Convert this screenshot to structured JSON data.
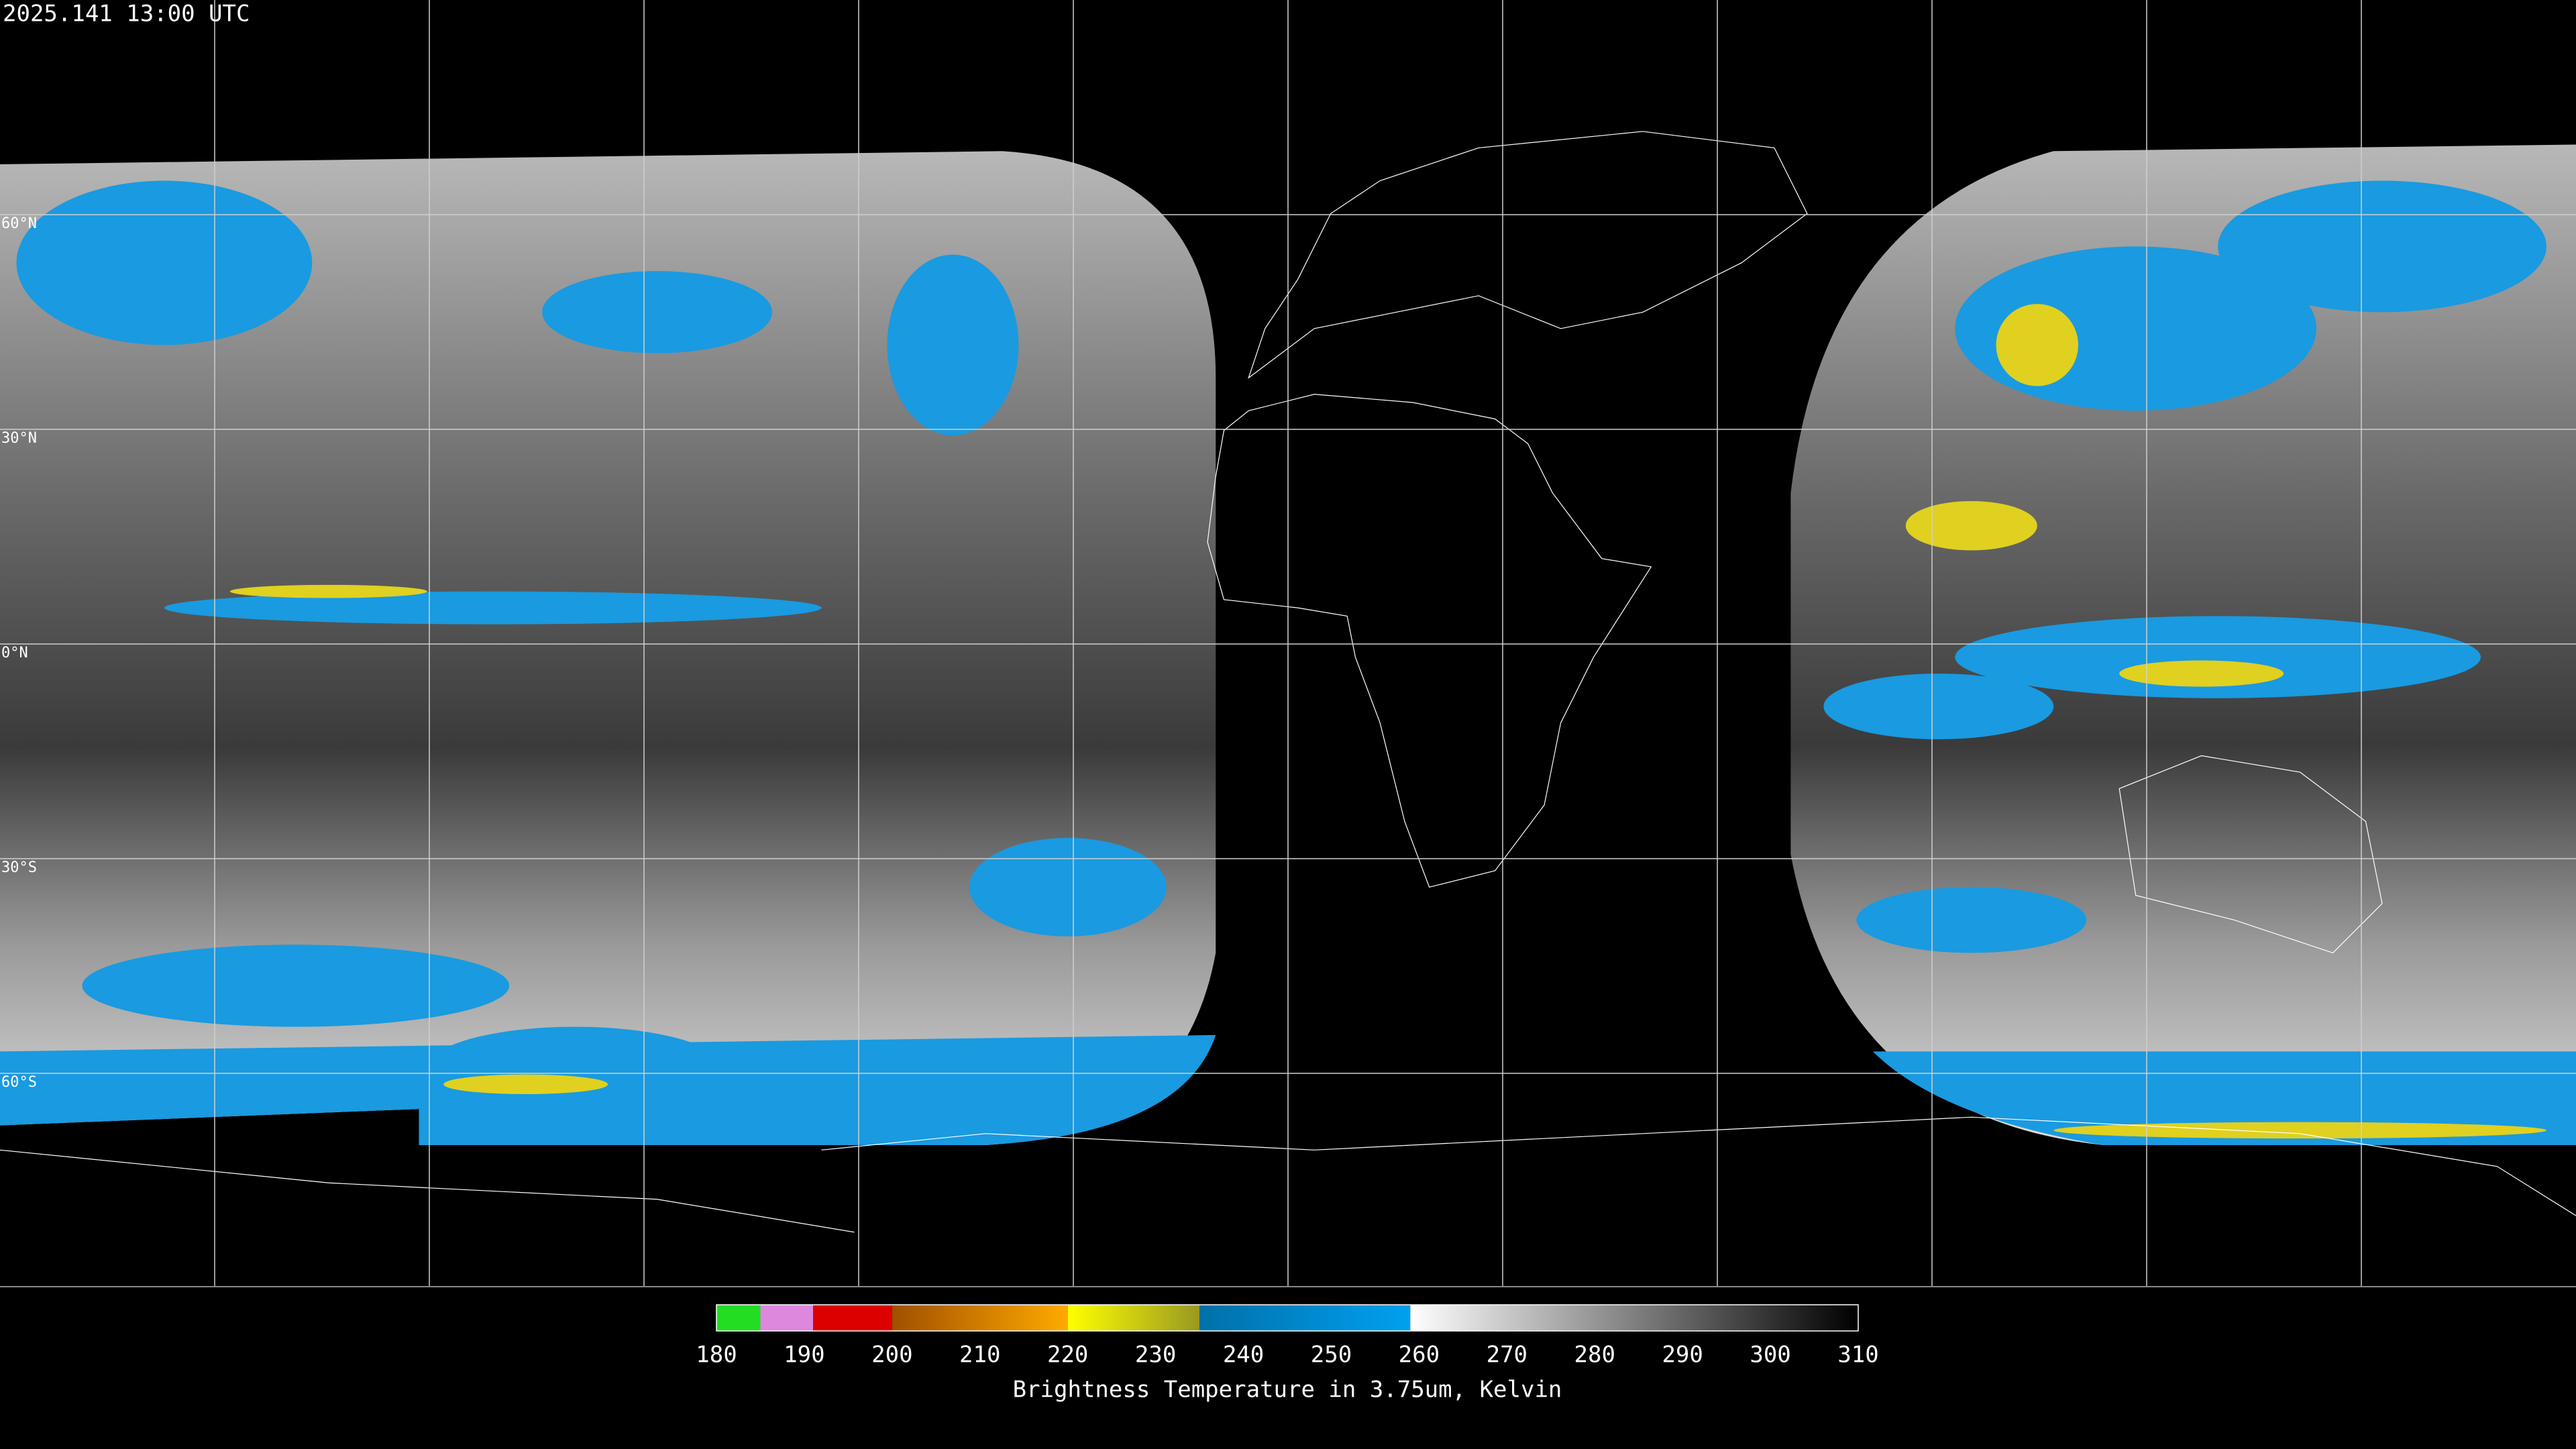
{
  "header": {
    "title": "2025.141 13:00 UTC"
  },
  "map": {
    "latitude_labels": [
      "60°N",
      "30°N",
      "0°N",
      "30°S",
      "60°S"
    ]
  },
  "colorbar": {
    "ticks": [
      180,
      190,
      200,
      210,
      220,
      230,
      240,
      250,
      260,
      270,
      280,
      290,
      300,
      310
    ],
    "segments": [
      {
        "from": 180,
        "to": 185,
        "colors": [
          "#22dd22",
          "#22dd22"
        ]
      },
      {
        "from": 185,
        "to": 191,
        "colors": [
          "#dd88dd",
          "#dd88dd"
        ]
      },
      {
        "from": 191,
        "to": 200,
        "colors": [
          "#dd0000",
          "#dd0000"
        ]
      },
      {
        "from": 200,
        "to": 220,
        "colors": [
          "#a05000",
          "#ffaa00"
        ]
      },
      {
        "from": 220,
        "to": 235,
        "colors": [
          "#ffff00",
          "#999922"
        ]
      },
      {
        "from": 235,
        "to": 259,
        "colors": [
          "#0070a8",
          "#00a0f0"
        ]
      },
      {
        "from": 259,
        "to": 310,
        "colors": [
          "#ffffff",
          "#000000"
        ]
      }
    ],
    "label": "Brightness Temperature in 3.75um, Kelvin"
  }
}
